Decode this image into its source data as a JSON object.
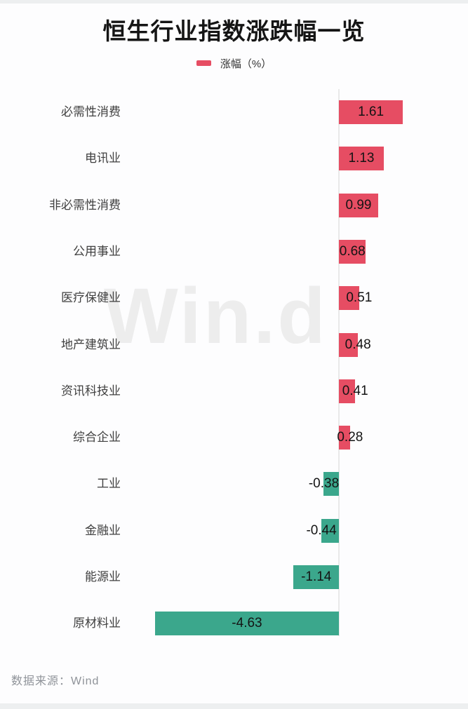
{
  "page": {
    "title": "恒生行业指数涨跌幅一览",
    "legend": {
      "label": "涨幅（%）"
    },
    "watermark": "Win.d",
    "footer": "数据来源：Wind"
  },
  "colors": {
    "positive": "#e64d63",
    "negative": "#3ba78c",
    "axis": "#e9e9e9",
    "category_text": "#3f3f3f",
    "value_text": "#141414",
    "watermark_text": "#ededed",
    "footer_text": "#8f9399"
  },
  "chart_data": {
    "type": "bar",
    "orientation": "horizontal",
    "title": "恒生行业指数涨跌幅一览",
    "legend": [
      "涨幅（%）"
    ],
    "unit": "%",
    "categories": [
      "必需性消费",
      "电讯业",
      "非必需性消费",
      "公用事业",
      "医疗保健业",
      "地产建筑业",
      "资讯科技业",
      "综合企业",
      "工业",
      "金融业",
      "能源业",
      "原材料业"
    ],
    "values": [
      1.61,
      1.13,
      0.99,
      0.68,
      0.51,
      0.48,
      0.41,
      0.28,
      -0.38,
      -0.44,
      -1.14,
      -4.63
    ],
    "xlim": [
      -5.0,
      2.0
    ],
    "grid": false,
    "legend_position": "top",
    "positive_color": "#e64d63",
    "negative_color": "#3ba78c",
    "source": "Wind"
  }
}
